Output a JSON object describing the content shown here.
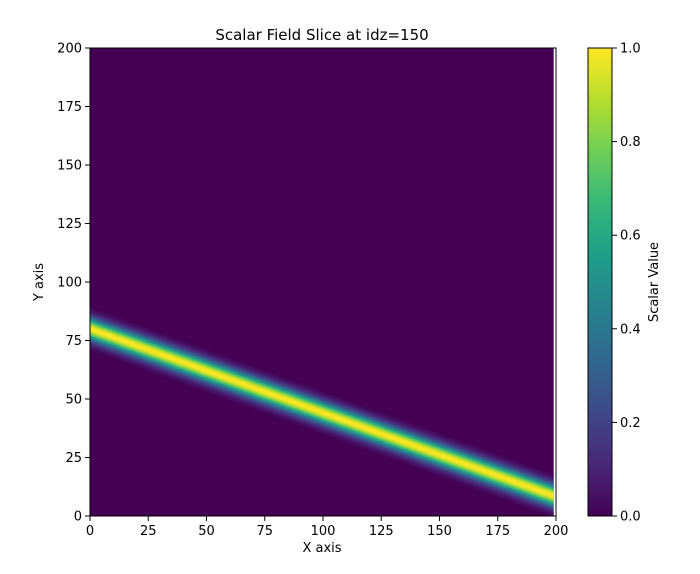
{
  "chart_data": {
    "type": "heatmap",
    "title": "Scalar Field Slice at idz=150",
    "xlabel": "X axis",
    "ylabel": "Y axis",
    "xlim": [
      0,
      200
    ],
    "ylim": [
      0,
      200
    ],
    "x_ticks": [
      0,
      25,
      50,
      75,
      100,
      125,
      150,
      175,
      200
    ],
    "y_ticks": [
      0,
      25,
      50,
      75,
      100,
      125,
      150,
      175,
      200
    ],
    "data_x_extent": [
      0,
      199
    ],
    "colormap": "viridis",
    "colorbar": {
      "label": "Scalar Value",
      "range": [
        0.0,
        1.0
      ],
      "ticks": [
        0.0,
        0.2,
        0.4,
        0.6,
        0.8,
        1.0
      ],
      "tick_labels": [
        "0.0",
        "0.2",
        "0.4",
        "0.6",
        "0.8",
        "1.0"
      ]
    },
    "background_value": 0.0,
    "band": {
      "description_points": [
        {
          "x": 0,
          "y": 80
        },
        {
          "x": 195,
          "y": 10
        }
      ],
      "peak_value": 1.0,
      "half_width_y": 9
    }
  },
  "colors": {
    "viridis_stops": [
      "#440154",
      "#482878",
      "#3e4989",
      "#31688e",
      "#26828e",
      "#1f9e89",
      "#35b779",
      "#6ece58",
      "#b5de2b",
      "#fde725"
    ]
  }
}
